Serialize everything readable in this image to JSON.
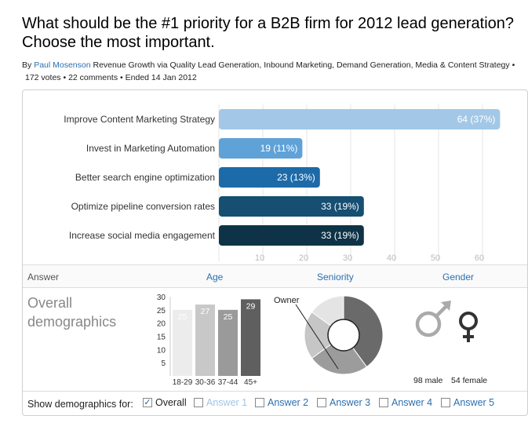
{
  "poll": {
    "title": "What should be the #1 priority for a B2B firm for 2012 lead generation? Choose the most important.",
    "by_prefix": "By",
    "author": "Paul Mosenson",
    "categories": "Revenue Growth via Quality Lead Generation, Inbound Marketing, Demand Generation, Media & Content Strategy",
    "bullet": "•",
    "votes": "172 votes",
    "comments": "22 comments",
    "ended": "Ended 14 Jan 2012"
  },
  "colors": {
    "bar1": "#a3c8e7",
    "bar2": "#5fa2d8",
    "bar3": "#1d6aa8",
    "bar4": "#164f72",
    "bar5": "#0e3346"
  },
  "chart_data": [
    {
      "type": "bar",
      "orientation": "horizontal",
      "categories": [
        "Improve Content Marketing Strategy",
        "Invest in Marketing Automation",
        "Better search engine optimization",
        "Optimize pipeline conversion rates",
        "Increase social media engagement"
      ],
      "values": [
        64,
        19,
        23,
        33,
        33
      ],
      "value_labels": [
        "64 (37%)",
        "19 (11%)",
        "23 (13%)",
        "33 (19%)",
        "33 (19%)"
      ],
      "x_ticks": [
        10,
        20,
        30,
        40,
        50,
        60
      ],
      "xlim": [
        0,
        65
      ]
    },
    {
      "type": "bar",
      "categories": [
        "18-29",
        "30-36",
        "37-44",
        "45+"
      ],
      "values": [
        25,
        27,
        25,
        29
      ],
      "value_labels": [
        "25",
        "27",
        "25",
        "29"
      ],
      "y_ticks": [
        5,
        10,
        15,
        20,
        25,
        30
      ],
      "ylim": [
        0,
        30
      ]
    },
    {
      "type": "pie",
      "style": "donut",
      "highlight_label": "Owner",
      "slices": [
        40,
        25,
        20,
        15
      ]
    }
  ],
  "demographics": {
    "header_answer": "Answer",
    "header_age": "Age",
    "header_seniority": "Seniority",
    "header_gender": "Gender",
    "title": "Overall demographics",
    "male_text": "98 male",
    "female_text": "54 female",
    "male_icon": "male-symbol-icon",
    "female_icon": "female-symbol-icon"
  },
  "footer": {
    "label": "Show demographics for:",
    "options": [
      {
        "label": "Overall",
        "checked": true
      },
      {
        "label": "Answer 1",
        "checked": false
      },
      {
        "label": "Answer 2",
        "checked": false
      },
      {
        "label": "Answer 3",
        "checked": false
      },
      {
        "label": "Answer 4",
        "checked": false
      },
      {
        "label": "Answer 5",
        "checked": false
      }
    ]
  }
}
